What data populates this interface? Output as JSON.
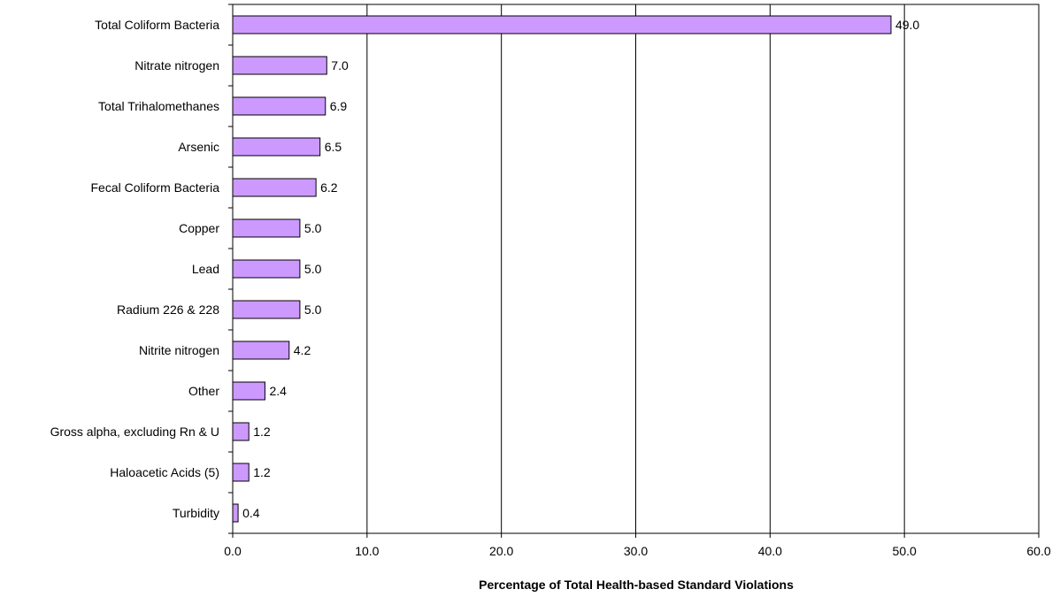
{
  "chart_data": {
    "type": "bar",
    "orientation": "horizontal",
    "categories": [
      "Total Coliform Bacteria",
      "Nitrate nitrogen",
      "Total Trihalomethanes",
      "Arsenic",
      "Fecal Coliform Bacteria",
      "Copper",
      "Lead",
      "Radium 226 & 228",
      "Nitrite nitrogen",
      "Other",
      "Gross alpha, excluding Rn & U",
      "Haloacetic Acids (5)",
      "Turbidity"
    ],
    "values": [
      49.0,
      7.0,
      6.9,
      6.5,
      6.2,
      5.0,
      5.0,
      5.0,
      4.2,
      2.4,
      1.2,
      1.2,
      0.4
    ],
    "value_labels": [
      "49.0",
      "7.0",
      "6.9",
      "6.5",
      "6.2",
      "5.0",
      "5.0",
      "5.0",
      "4.2",
      "2.4",
      "1.2",
      "1.2",
      "0.4"
    ],
    "title": "",
    "xlabel": "Percentage of Total Health-based Standard Violations",
    "ylabel": "",
    "xlim": [
      0,
      60
    ],
    "x_ticks": [
      "0.0",
      "10.0",
      "20.0",
      "30.0",
      "40.0",
      "50.0",
      "60.0"
    ],
    "grid": "vertical",
    "legend": "none",
    "bar_color": "#cc99ff",
    "bar_border_color": "#000000"
  }
}
